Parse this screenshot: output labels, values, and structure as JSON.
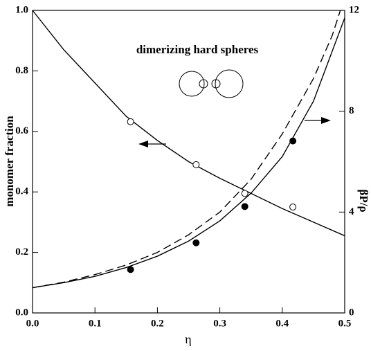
{
  "chart_data": {
    "type": "line",
    "annotation": "dimerizing hard spheres",
    "xlabel": "η",
    "ylabel": "monomer fraction",
    "y2label": "βP/ρ",
    "xlim": [
      0,
      0.5
    ],
    "xticks": [
      {
        "value": 0,
        "label": "0.0"
      },
      0.1,
      0.2,
      0.3,
      0.4,
      0.5
    ],
    "ylim": [
      0,
      1
    ],
    "yticks": [
      {
        "value": 0,
        "label": "0.0"
      },
      0.2,
      0.4,
      0.6,
      0.8,
      {
        "value": 1,
        "label": "1.0"
      }
    ],
    "y2lim": [
      0,
      12
    ],
    "y2ticks": [
      0,
      4,
      8,
      12
    ],
    "series": [
      {
        "style": "solid",
        "color": "#000000",
        "axis": "y",
        "x": [
          0,
          0.05,
          0.1,
          0.15,
          0.2,
          0.25,
          0.3,
          0.35,
          0.4,
          0.45,
          0.5
        ],
        "values": [
          1.0,
          0.87,
          0.76,
          0.65,
          0.57,
          0.5,
          0.445,
          0.395,
          0.345,
          0.3,
          0.255
        ]
      },
      {
        "style": "open-circle",
        "color": "#000000",
        "axis": "y",
        "x": [
          0.157,
          0.262,
          0.34,
          0.417
        ],
        "values": [
          0.632,
          0.49,
          0.395,
          0.35
        ]
      },
      {
        "style": "solid",
        "color": "#000000",
        "axis": "y2",
        "x": [
          0,
          0.05,
          0.1,
          0.15,
          0.2,
          0.25,
          0.3,
          0.35,
          0.4,
          0.45,
          0.5
        ],
        "values": [
          1.0,
          1.2,
          1.45,
          1.8,
          2.25,
          2.85,
          3.65,
          4.75,
          6.2,
          8.4,
          11.7
        ]
      },
      {
        "style": "dashed",
        "color": "#000000",
        "axis": "y2",
        "x": [
          0,
          0.05,
          0.1,
          0.15,
          0.2,
          0.25,
          0.3,
          0.35,
          0.4,
          0.45,
          0.48,
          0.493
        ],
        "values": [
          1.0,
          1.22,
          1.52,
          1.9,
          2.4,
          3.1,
          4.0,
          5.3,
          7.1,
          9.3,
          11.0,
          12
        ]
      },
      {
        "style": "filled-circle",
        "color": "#000000",
        "axis": "y2",
        "x": [
          0.157,
          0.262,
          0.34,
          0.417
        ],
        "values": [
          1.72,
          2.78,
          4.22,
          6.82
        ]
      }
    ]
  }
}
